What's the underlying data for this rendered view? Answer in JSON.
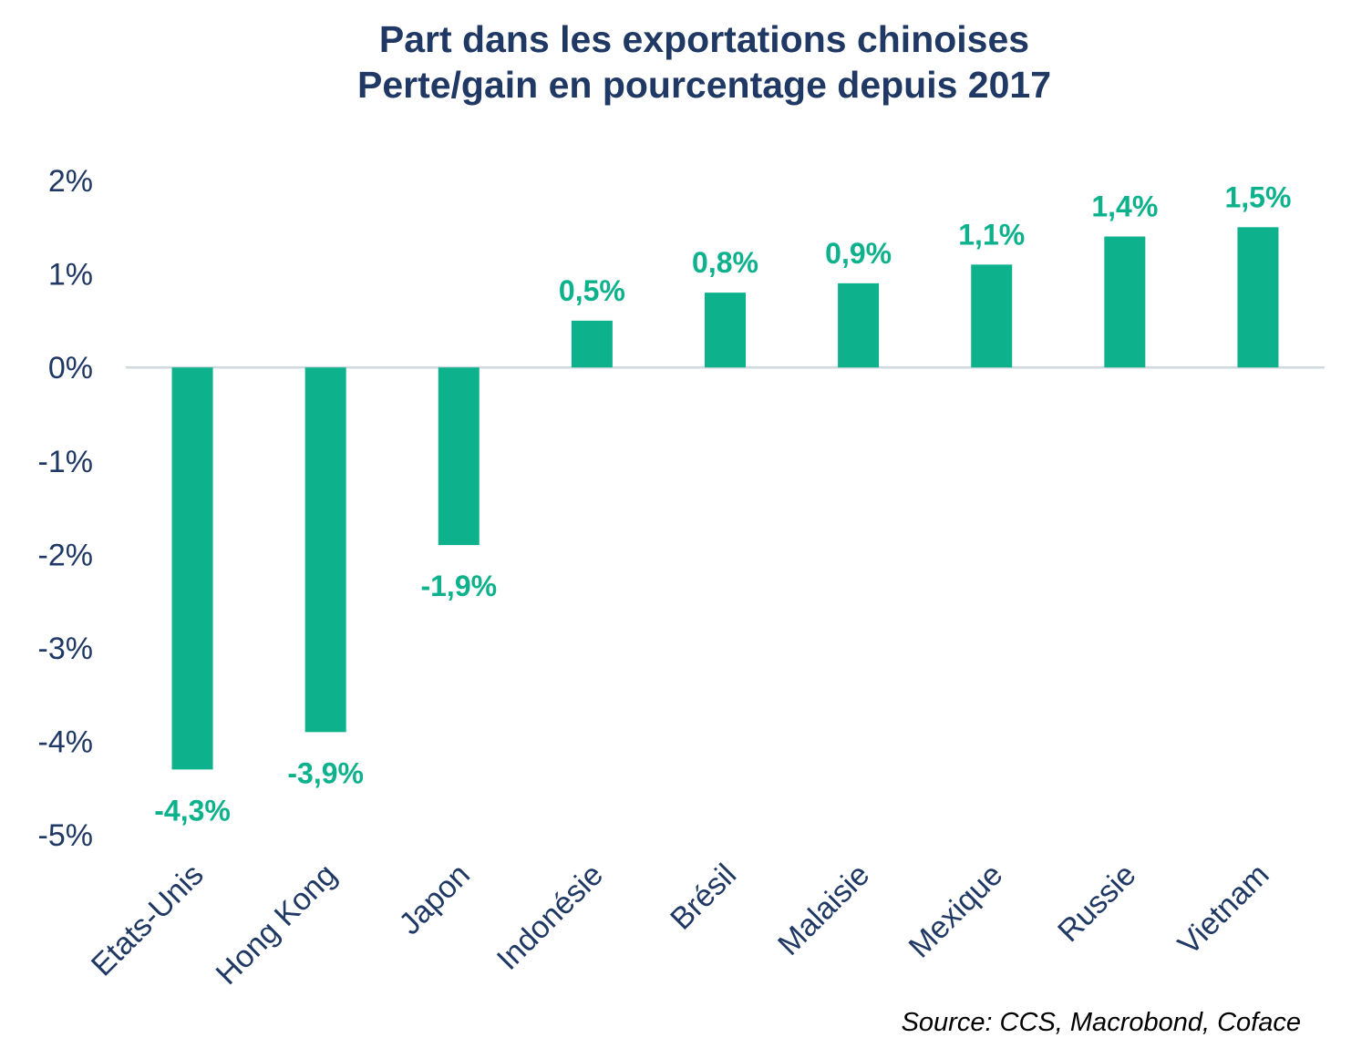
{
  "chart_data": {
    "type": "bar",
    "title_line1": "Part dans les exportations chinoises",
    "title_line2": "Perte/gain en pourcentage depuis 2017",
    "xlabel": "",
    "ylabel": "",
    "categories": [
      "Etats-Unis",
      "Hong Kong",
      "Japon",
      "Indonésie",
      "Brésil",
      "Malaisie",
      "Mexique",
      "Russie",
      "Vietnam"
    ],
    "values": [
      -4.3,
      -3.9,
      -1.9,
      0.5,
      0.8,
      0.9,
      1.1,
      1.4,
      1.5
    ],
    "data_labels": [
      "-4,3%",
      "-3,9%",
      "-1,9%",
      "0,5%",
      "0,8%",
      "0,9%",
      "1,1%",
      "1,4%",
      "1,5%"
    ],
    "ylim": [
      -5,
      2
    ],
    "yticks": [
      2,
      1,
      0,
      -1,
      -2,
      -3,
      -4,
      -5
    ],
    "ytick_labels": [
      "2%",
      "1%",
      "0%",
      "-1%",
      "-2%",
      "-3%",
      "-4%",
      "-5%"
    ],
    "grid": false,
    "legend": "none",
    "colors": {
      "bar": "#0db28c",
      "label": "#0db28c",
      "axis_text": "#1f3864",
      "zero_line": "#d0d8e0"
    }
  },
  "source": "Source: CCS, Macrobond, Coface"
}
